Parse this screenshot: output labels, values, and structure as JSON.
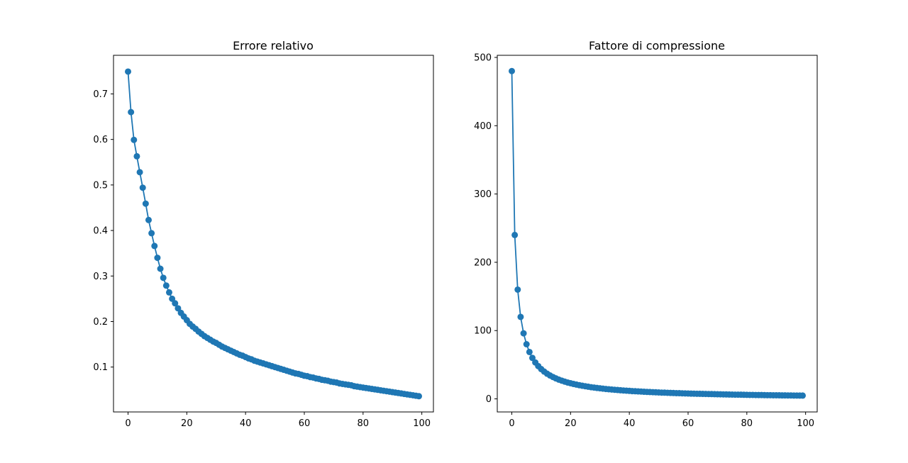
{
  "chart_data": [
    {
      "type": "line",
      "title": "Errore relativo",
      "xlabel": "",
      "ylabel": "",
      "xlim": [
        -4.95,
        103.95
      ],
      "ylim": [
        0.0014,
        0.7848
      ],
      "grid": false,
      "xticks": [
        0,
        20,
        40,
        60,
        80,
        100
      ],
      "yticks": [
        0.1,
        0.2,
        0.3,
        0.4,
        0.5,
        0.6,
        0.7
      ],
      "color": "#1f77b4",
      "marker": "circle",
      "x": [
        0,
        1,
        2,
        3,
        4,
        5,
        6,
        7,
        8,
        9,
        10,
        11,
        12,
        13,
        14,
        15,
        16,
        17,
        18,
        19,
        20,
        21,
        22,
        23,
        24,
        25,
        26,
        27,
        28,
        29,
        30,
        31,
        32,
        33,
        34,
        35,
        36,
        37,
        38,
        39,
        40,
        41,
        42,
        43,
        44,
        45,
        46,
        47,
        48,
        49,
        50,
        51,
        52,
        53,
        54,
        55,
        56,
        57,
        58,
        59,
        60,
        61,
        62,
        63,
        64,
        65,
        66,
        67,
        68,
        69,
        70,
        71,
        72,
        73,
        74,
        75,
        76,
        77,
        78,
        79,
        80,
        81,
        82,
        83,
        84,
        85,
        86,
        87,
        88,
        89,
        90,
        91,
        92,
        93,
        94,
        95,
        96,
        97,
        98,
        99
      ],
      "values": [
        0.749,
        0.66,
        0.599,
        0.563,
        0.528,
        0.494,
        0.459,
        0.423,
        0.394,
        0.366,
        0.34,
        0.316,
        0.296,
        0.279,
        0.264,
        0.25,
        0.24,
        0.229,
        0.219,
        0.211,
        0.203,
        0.195,
        0.189,
        0.184,
        0.178,
        0.173,
        0.168,
        0.164,
        0.16,
        0.156,
        0.153,
        0.149,
        0.145,
        0.142,
        0.139,
        0.136,
        0.133,
        0.13,
        0.127,
        0.125,
        0.122,
        0.119,
        0.117,
        0.114,
        0.112,
        0.11,
        0.108,
        0.106,
        0.104,
        0.102,
        0.1,
        0.098,
        0.096,
        0.094,
        0.092,
        0.09,
        0.088,
        0.086,
        0.085,
        0.083,
        0.081,
        0.08,
        0.078,
        0.077,
        0.075,
        0.074,
        0.072,
        0.071,
        0.07,
        0.068,
        0.067,
        0.066,
        0.064,
        0.063,
        0.062,
        0.061,
        0.06,
        0.058,
        0.057,
        0.056,
        0.055,
        0.054,
        0.053,
        0.052,
        0.051,
        0.05,
        0.049,
        0.048,
        0.047,
        0.046,
        0.045,
        0.044,
        0.043,
        0.042,
        0.041,
        0.04,
        0.039,
        0.038,
        0.037,
        0.036
      ]
    },
    {
      "type": "line",
      "title": "Fattore di compressione",
      "xlabel": "",
      "ylabel": "",
      "xlim": [
        -4.95,
        103.95
      ],
      "ylim": [
        -19.15,
        503.1
      ],
      "grid": false,
      "xticks": [
        0,
        20,
        40,
        60,
        80,
        100
      ],
      "yticks": [
        0,
        100,
        200,
        300,
        400,
        500
      ],
      "color": "#1f77b4",
      "marker": "circle",
      "x": [
        0,
        1,
        2,
        3,
        4,
        5,
        6,
        7,
        8,
        9,
        10,
        11,
        12,
        13,
        14,
        15,
        16,
        17,
        18,
        19,
        20,
        21,
        22,
        23,
        24,
        25,
        26,
        27,
        28,
        29,
        30,
        31,
        32,
        33,
        34,
        35,
        36,
        37,
        38,
        39,
        40,
        41,
        42,
        43,
        44,
        45,
        46,
        47,
        48,
        49,
        50,
        51,
        52,
        53,
        54,
        55,
        56,
        57,
        58,
        59,
        60,
        61,
        62,
        63,
        64,
        65,
        66,
        67,
        68,
        69,
        70,
        71,
        72,
        73,
        74,
        75,
        76,
        77,
        78,
        79,
        80,
        81,
        82,
        83,
        84,
        85,
        86,
        87,
        88,
        89,
        90,
        91,
        92,
        93,
        94,
        95,
        96,
        97,
        98,
        99
      ],
      "values": [
        480,
        240,
        160,
        120,
        96,
        80,
        68.6,
        60,
        53.3,
        48,
        43.6,
        40,
        36.9,
        34.3,
        32,
        30,
        28.2,
        26.7,
        25.3,
        24,
        22.9,
        21.8,
        20.9,
        20,
        19.2,
        18.5,
        17.8,
        17.1,
        16.6,
        16,
        15.5,
        15,
        14.5,
        14.1,
        13.7,
        13.3,
        13,
        12.6,
        12.3,
        12,
        11.7,
        11.4,
        11.2,
        10.9,
        10.7,
        10.4,
        10.2,
        10,
        9.8,
        9.6,
        9.4,
        9.2,
        9.1,
        8.9,
        8.7,
        8.6,
        8.4,
        8.3,
        8.1,
        8,
        7.9,
        7.7,
        7.6,
        7.5,
        7.4,
        7.3,
        7.2,
        7.1,
        7,
        6.9,
        6.8,
        6.7,
        6.6,
        6.5,
        6.4,
        6.3,
        6.2,
        6.2,
        6.1,
        6,
        5.9,
        5.8,
        5.8,
        5.7,
        5.6,
        5.6,
        5.5,
        5.4,
        5.4,
        5.3,
        5.3,
        5.2,
        5.1,
        5.1,
        5,
        5,
        4.9,
        4.9,
        4.8,
        4.8
      ]
    }
  ]
}
